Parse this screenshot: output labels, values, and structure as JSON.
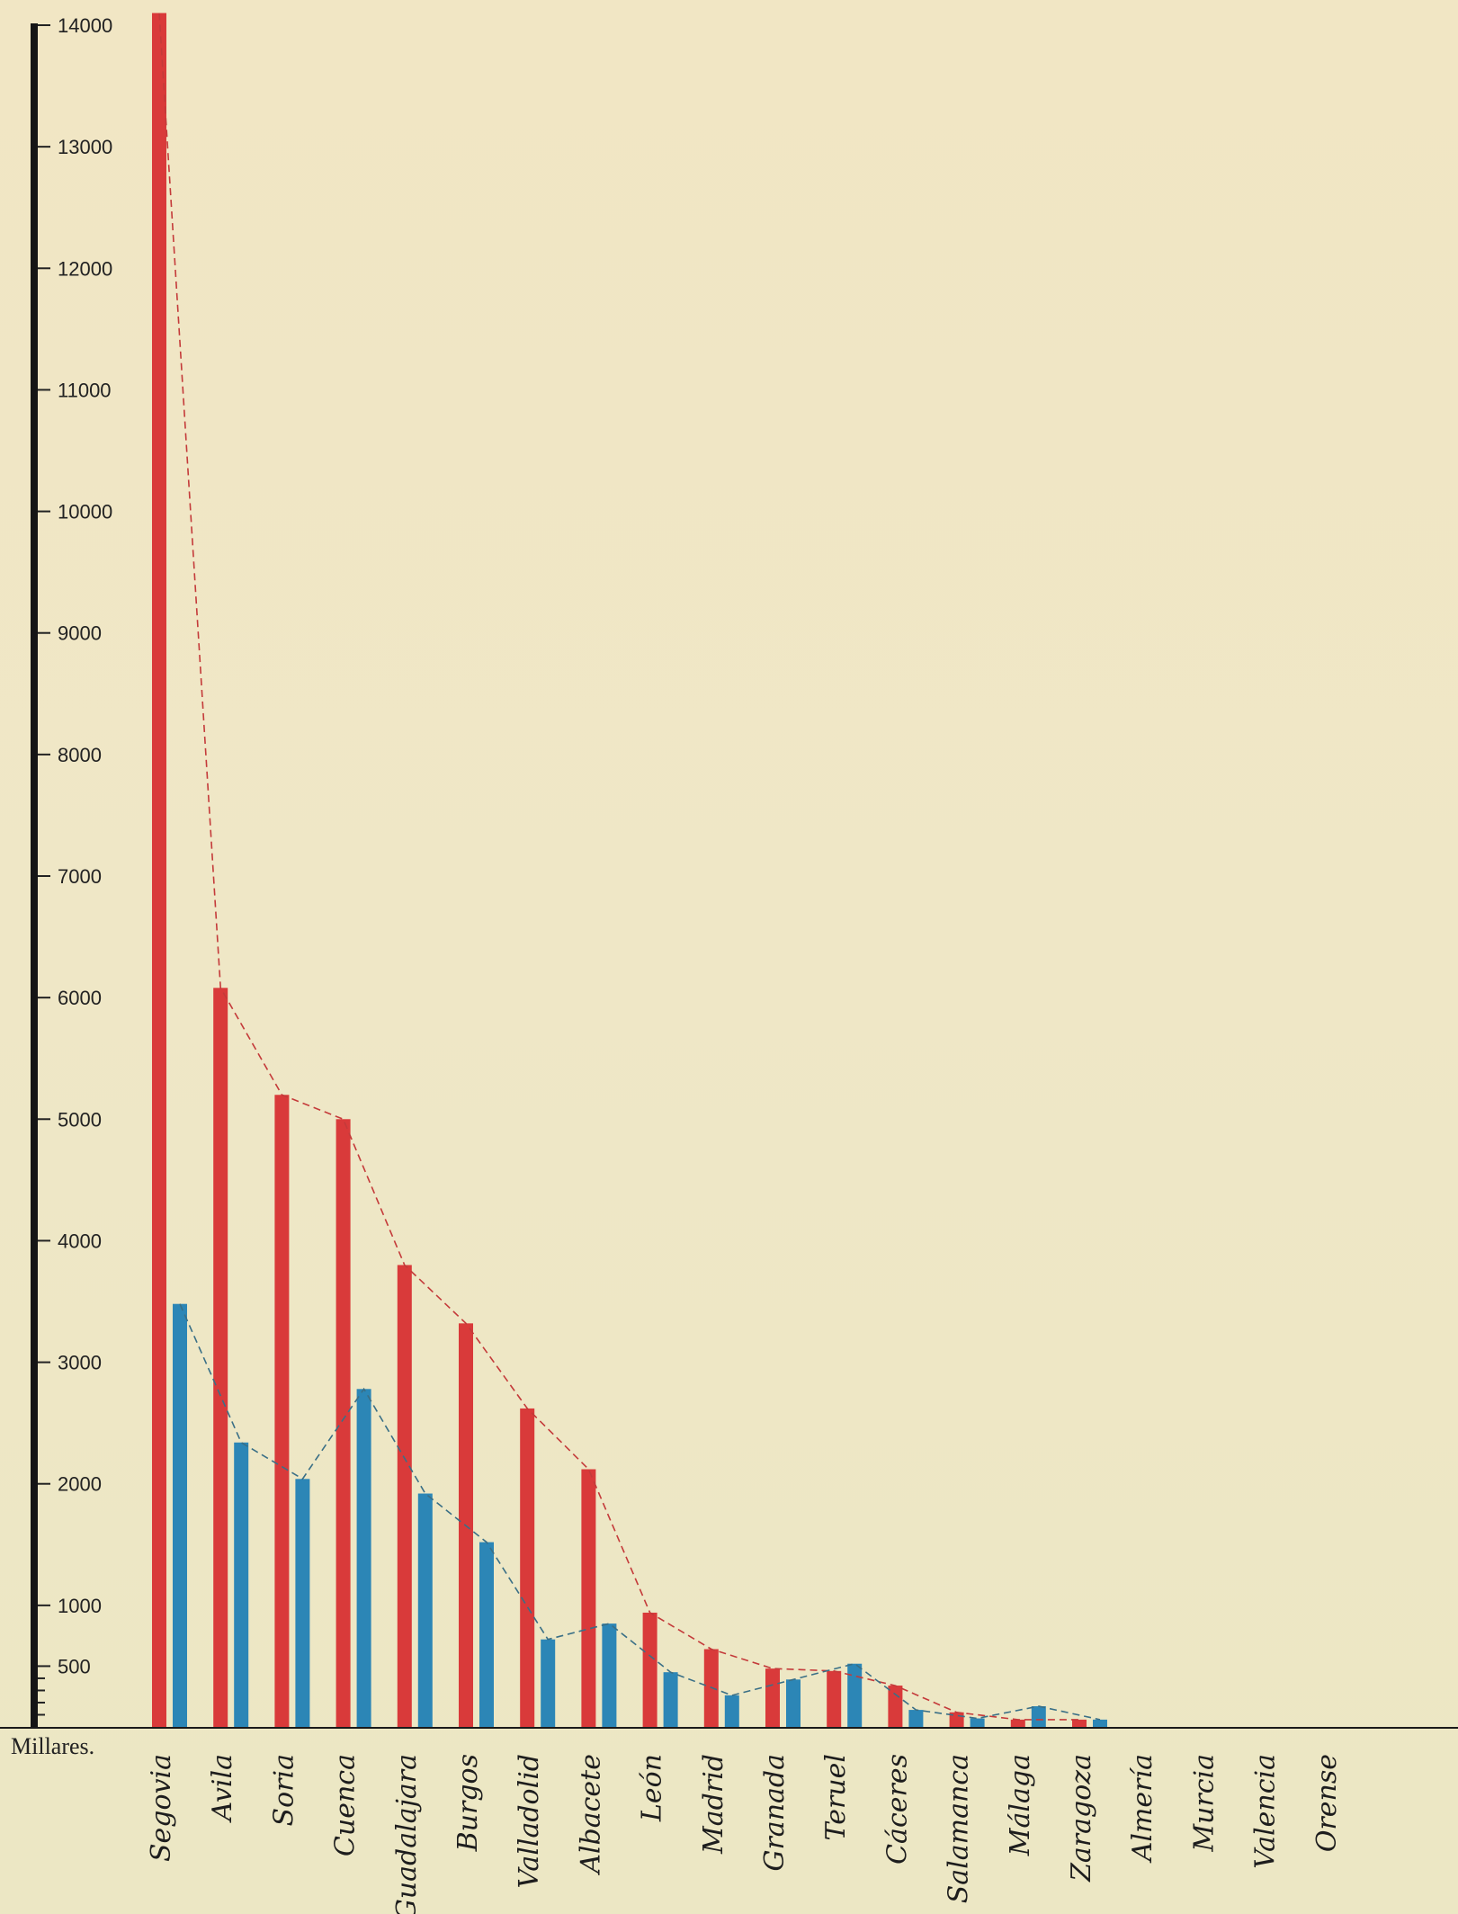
{
  "chart_data": {
    "type": "bar",
    "unit_label": "Millares.",
    "yticks": [
      500,
      1000,
      2000,
      3000,
      4000,
      5000,
      6000,
      7000,
      8000,
      9000,
      10000,
      11000,
      12000,
      13000,
      14000
    ],
    "ylim": [
      0,
      14000
    ],
    "categories": [
      "Segovia",
      "Avila",
      "Soria",
      "Cuenca",
      "Guadalajara",
      "Burgos",
      "Valladolid",
      "Albacete",
      "León",
      "Madrid",
      "Granada",
      "Teruel",
      "Cáceres",
      "Salamanca",
      "Málaga",
      "Zaragoza",
      "Almería",
      "Murcia",
      "Valencia",
      "Orense"
    ],
    "series": [
      {
        "color": "#d93a3a",
        "values": [
          14100,
          6080,
          5200,
          5000,
          3800,
          3320,
          2620,
          2120,
          940,
          640,
          480,
          460,
          340,
          120,
          60,
          60,
          0,
          0,
          0,
          0
        ]
      },
      {
        "color": "#2c86b6",
        "values": [
          3480,
          2340,
          2040,
          2780,
          1920,
          1520,
          720,
          850,
          450,
          260,
          390,
          520,
          140,
          70,
          170,
          60,
          0,
          0,
          0,
          0
        ]
      }
    ],
    "grid": false,
    "legend": "none"
  }
}
